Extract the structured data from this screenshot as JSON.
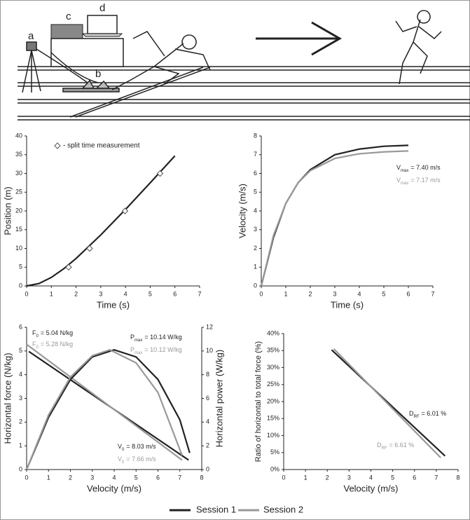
{
  "illustration": {
    "labels": [
      "a",
      "b",
      "c",
      "d"
    ]
  },
  "chart_data": [
    {
      "type": "line",
      "xlabel": "Time (s)",
      "ylabel": "Position (m)",
      "xlim": [
        0,
        7
      ],
      "xticks": [
        0,
        1,
        2,
        3,
        4,
        5,
        6,
        7
      ],
      "ylim": [
        0,
        40
      ],
      "yticks": [
        0,
        5,
        10,
        15,
        20,
        25,
        30,
        35,
        40
      ],
      "series": [
        {
          "color": "#222222",
          "x": [
            0,
            0.5,
            1,
            1.5,
            2,
            3,
            4,
            5,
            6
          ],
          "values": [
            0,
            0.64,
            2.27,
            4.57,
            7.32,
            13.6,
            20.4,
            27.5,
            34.7
          ]
        },
        {
          "name": "- split time measurement",
          "color": "#555555",
          "marker": "diamond",
          "x": [
            1.7,
            2.55,
            3.98,
            5.4
          ],
          "values": [
            5,
            10,
            20,
            30
          ]
        }
      ]
    },
    {
      "type": "line",
      "xlabel": "Time (s)",
      "ylabel": "Velocity (m/s)",
      "xlim": [
        0,
        7
      ],
      "xticks": [
        0,
        1,
        2,
        3,
        4,
        5,
        6,
        7
      ],
      "ylim": [
        0,
        8
      ],
      "yticks": [
        0,
        1,
        2,
        3,
        4,
        5,
        6,
        7,
        8
      ],
      "series": [
        {
          "name": "Session 1",
          "color": "#222222",
          "x": [
            0,
            0.5,
            1,
            1.5,
            2,
            3,
            4,
            5,
            6
          ],
          "values": [
            0,
            2.6,
            4.4,
            5.5,
            6.2,
            7.0,
            7.3,
            7.45,
            7.5
          ]
        },
        {
          "name": "Session 2",
          "color": "#999999",
          "x": [
            0,
            0.5,
            1,
            1.5,
            2,
            3,
            4,
            5,
            6
          ],
          "values": [
            0,
            2.7,
            4.4,
            5.5,
            6.15,
            6.8,
            7.05,
            7.15,
            7.2
          ]
        }
      ],
      "annotations": [
        {
          "text": "V",
          "sub": "max",
          "rest": "= 7.40 m/s",
          "color": "#222222"
        },
        {
          "text": "V",
          "sub": "max",
          "rest": "= 7.17 m/s",
          "color": "#999999"
        }
      ]
    },
    {
      "type": "line",
      "xlabel": "Velocity (m/s)",
      "ylabel": "Horizontal force (N/kg)",
      "y2label": "Horizontal power (W/kg)",
      "xlim": [
        0,
        8
      ],
      "xticks": [
        0,
        1,
        2,
        3,
        4,
        5,
        6,
        7,
        8
      ],
      "ylim": [
        0,
        6
      ],
      "yticks": [
        0,
        1,
        2,
        3,
        4,
        5,
        6
      ],
      "y2lim": [
        0,
        12
      ],
      "y2ticks": [
        0,
        2,
        4,
        6,
        8,
        10,
        12
      ],
      "series": [
        {
          "color": "#222222",
          "x": [
            0.1,
            7.4
          ],
          "values": [
            4.98,
            0.4
          ]
        },
        {
          "color": "#999999",
          "x": [
            0,
            7.1
          ],
          "values": [
            5.28,
            0.4
          ]
        },
        {
          "color": "#222222",
          "axis": "y2",
          "x": [
            0,
            1,
            2,
            3,
            4,
            5,
            6,
            7,
            7.45
          ],
          "values": [
            0,
            4.4,
            7.6,
            9.5,
            10.1,
            9.5,
            7.6,
            4.2,
            1.4
          ]
        },
        {
          "color": "#999999",
          "axis": "y2",
          "x": [
            0,
            1,
            2,
            3,
            3.8,
            5,
            6,
            7.1
          ],
          "values": [
            0,
            4.6,
            7.8,
            9.6,
            10.1,
            9.0,
            6.5,
            1.2
          ]
        }
      ],
      "annotations": [
        {
          "text": "F",
          "sub": "0",
          "rest": "= 5.04 N/kg",
          "color": "#222222"
        },
        {
          "text": "F",
          "sub": "0",
          "rest": "= 5.28 N/kg",
          "color": "#999999"
        },
        {
          "text": "P",
          "sub": "max",
          "rest": "= 10.14 W/kg",
          "color": "#222222"
        },
        {
          "text": "P",
          "sub": "max",
          "rest": "= 10.12 W/kg",
          "color": "#999999"
        },
        {
          "text": "V",
          "sub": "0",
          "rest": "= 8.03 m/s",
          "color": "#222222"
        },
        {
          "text": "V",
          "sub": "0",
          "rest": "= 7.66 m/s",
          "color": "#999999"
        }
      ]
    },
    {
      "type": "line",
      "xlabel": "Velocity (m/s)",
      "ylabel": "Ratio of horizontal to total force (%)",
      "xlim": [
        0,
        8
      ],
      "xticks": [
        0,
        1,
        2,
        3,
        4,
        5,
        6,
        7,
        8
      ],
      "ylim": [
        0,
        40
      ],
      "yticks": [
        {
          "value": 0,
          "label": "0%"
        },
        {
          "value": 5,
          "label": "5%"
        },
        {
          "value": 10,
          "label": "10%"
        },
        {
          "value": 15,
          "label": "15%"
        },
        {
          "value": 20,
          "label": "20%"
        },
        {
          "value": 25,
          "label": "25%"
        },
        {
          "value": 30,
          "label": "30%"
        },
        {
          "value": 35,
          "label": "35%"
        },
        {
          "value": 40,
          "label": "40%"
        }
      ],
      "series": [
        {
          "color": "#222222",
          "x": [
            2.2,
            7.4
          ],
          "values": [
            35.2,
            4
          ]
        },
        {
          "color": "#999999",
          "x": [
            2.3,
            7.2
          ],
          "values": [
            35.5,
            3.5
          ]
        }
      ],
      "annotations": [
        {
          "text": "D",
          "sub": "RF",
          "rest": "= 6.01 %",
          "color": "#222222"
        },
        {
          "text": "D",
          "sub": "RF",
          "rest": "= 6.61 %",
          "color": "#999999"
        }
      ]
    }
  ]
}
